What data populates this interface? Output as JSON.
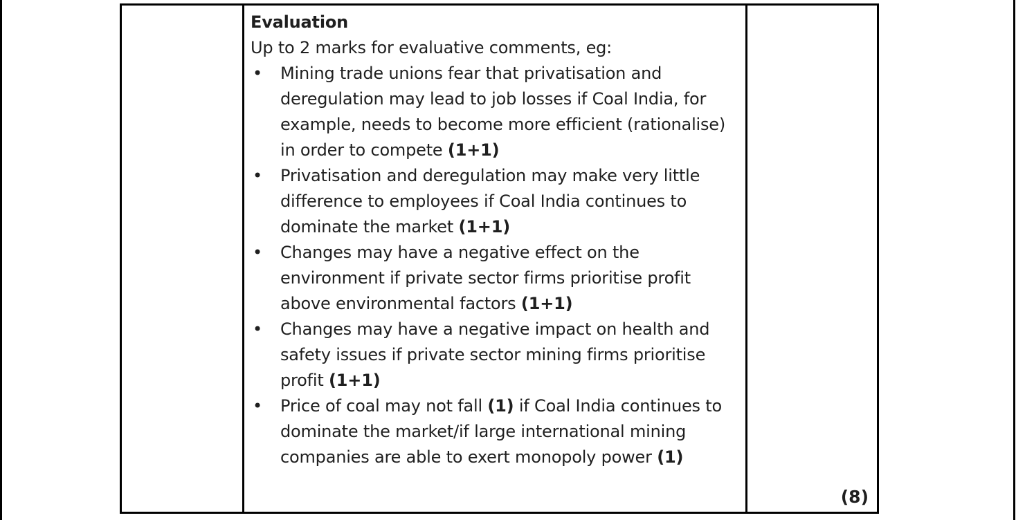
{
  "colors": {
    "border": "#000000",
    "text": "#1f1f1f",
    "background": "#ffffff"
  },
  "table": {
    "question_cell": {
      "content": ""
    },
    "answer_cell": {
      "heading": "Evaluation",
      "intro": "Up to 2 marks for evaluative comments, eg:",
      "bullets": [
        [
          {
            "text": "Mining trade unions fear that privatisation and deregulation may lead to job losses if Coal India, for example, needs to become more efficient (rationalise) in order to compete ",
            "bold": false
          },
          {
            "text": "(1+1)",
            "bold": true
          }
        ],
        [
          {
            "text": "Privatisation and deregulation may make very little difference to employees if Coal India continues to dominate the market ",
            "bold": false
          },
          {
            "text": "(1+1)",
            "bold": true
          }
        ],
        [
          {
            "text": "Changes may have a negative effect on the environment if private sector firms prioritise profit above environmental factors ",
            "bold": false
          },
          {
            "text": "(1+1)",
            "bold": true
          }
        ],
        [
          {
            "text": "Changes may have a negative impact on health and safety issues if private sector mining firms prioritise profit ",
            "bold": false
          },
          {
            "text": "(1+1)",
            "bold": true
          }
        ],
        [
          {
            "text": "Price of coal may not fall ",
            "bold": false
          },
          {
            "text": "(1)",
            "bold": true
          },
          {
            "text": " if Coal India continues to dominate the market/if large international mining companies are able to exert monopoly power ",
            "bold": false
          },
          {
            "text": "(1)",
            "bold": true
          }
        ]
      ]
    },
    "mark_cell": {
      "mark": "(8)"
    }
  }
}
